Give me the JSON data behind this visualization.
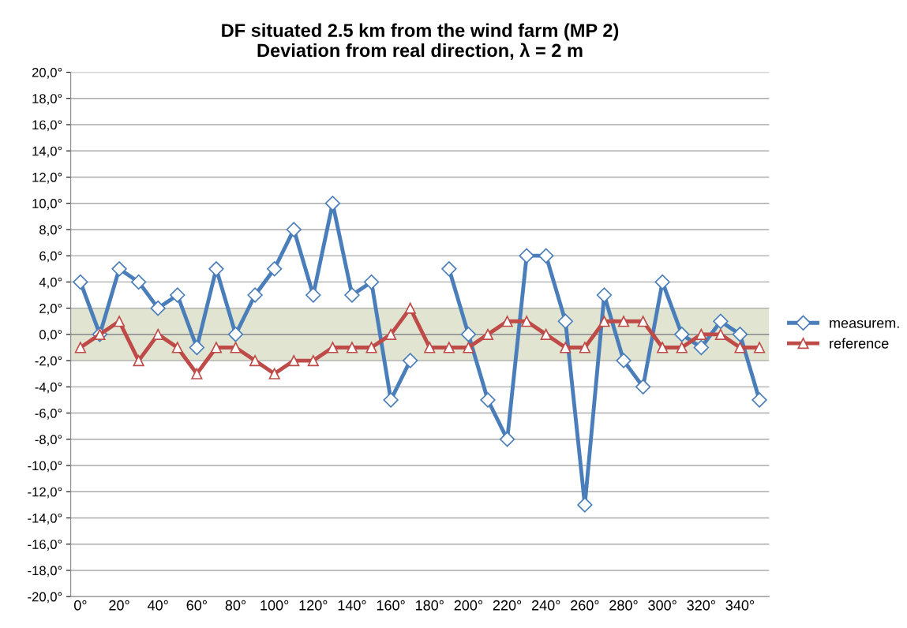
{
  "chart_data": {
    "type": "line",
    "title": "DF situated 2.5 km from the wind farm (MP 2)\nDeviation from real direction, λ = 2 m",
    "categories": [
      "0°",
      null,
      "20°",
      null,
      "40°",
      null,
      "60°",
      null,
      "80°",
      null,
      "100°",
      null,
      "120°",
      null,
      "140°",
      null,
      "160°",
      null,
      "180°",
      null,
      "200°",
      null,
      "220°",
      null,
      "240°",
      null,
      "260°",
      null,
      "280°",
      null,
      "300°",
      null,
      "320°",
      null,
      "340°",
      null
    ],
    "series": [
      {
        "name": "measurem.",
        "color": "#4a7ebb",
        "marker": "diamond",
        "values": [
          4,
          0,
          5,
          4,
          2,
          3,
          -1,
          5,
          0,
          3,
          5,
          8,
          3,
          10,
          3,
          4,
          -5,
          -2,
          null,
          5,
          0,
          -5,
          -8,
          6,
          6,
          1,
          -13,
          3,
          -2,
          -4,
          4,
          0,
          -1,
          1,
          0,
          -5
        ]
      },
      {
        "name": "reference",
        "color": "#be4b48",
        "marker": "triangle",
        "values": [
          -1,
          0,
          1,
          -2,
          0,
          -1,
          -3,
          -1,
          -1,
          -2,
          -3,
          -2,
          -2,
          -1,
          -1,
          -1,
          0,
          2,
          -1,
          -1,
          -1,
          0,
          1,
          1,
          0,
          -1,
          -1,
          1,
          1,
          1,
          -1,
          -1,
          0,
          0,
          -1,
          -1
        ]
      }
    ],
    "ylim": [
      -20,
      20
    ],
    "yticks": [
      {
        "value": -20,
        "label": "-20,0°"
      },
      {
        "value": -18,
        "label": "-18,0°"
      },
      {
        "value": -16,
        "label": "-16,0°"
      },
      {
        "value": -14,
        "label": "-14,0°"
      },
      {
        "value": -12,
        "label": "-12,0°"
      },
      {
        "value": -10,
        "label": "-10,0°"
      },
      {
        "value": -8,
        "label": "-8,0°"
      },
      {
        "value": -6,
        "label": "-6,0°"
      },
      {
        "value": -4,
        "label": "-4,0°"
      },
      {
        "value": -2,
        "label": "-2,0°"
      },
      {
        "value": 0,
        "label": "0,0°"
      },
      {
        "value": 2,
        "label": "2,0°"
      },
      {
        "value": 4,
        "label": "4,0°"
      },
      {
        "value": 6,
        "label": "6,0°"
      },
      {
        "value": 8,
        "label": "8,0°"
      },
      {
        "value": 10,
        "label": "10,0°"
      },
      {
        "value": 12,
        "label": "12,0°"
      },
      {
        "value": 14,
        "label": "14,0°"
      },
      {
        "value": 16,
        "label": "16,0°"
      },
      {
        "value": 18,
        "label": "18,0°"
      },
      {
        "value": 20,
        "label": "20,0°"
      }
    ],
    "bands": [
      {
        "axis": "y",
        "from": -2,
        "to": 2,
        "color": "#e0e4d0"
      }
    ],
    "grid": "y",
    "legend": "right",
    "line_style": "solid"
  }
}
